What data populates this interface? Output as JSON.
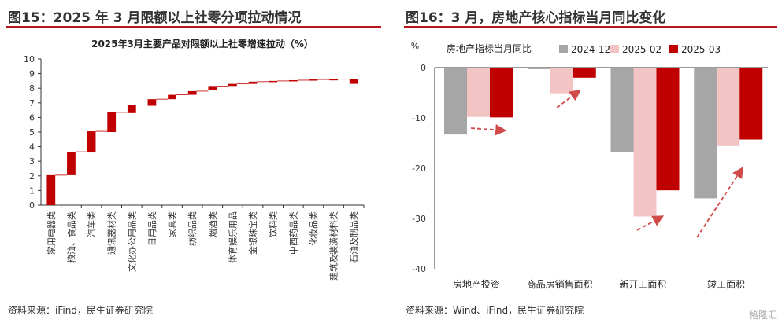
{
  "left_panel": {
    "figure_title": "图15：2025 年 3 月限额以上社零分项拉动情况",
    "source": "资料来源：iFind，民生证券研究院"
  },
  "right_panel": {
    "figure_title": "图16：3 月，房地产核心指标当月同比变化",
    "source": "资料来源：Wind、iFind，民生证券研究院",
    "watermark": "格隆汇"
  },
  "chart_data": [
    {
      "type": "bar",
      "subtype": "waterfall",
      "title": "2025年3月主要产品对限额以上社零增速拉动（%）",
      "categories": [
        "家用电器类",
        "粮油、食品类",
        "汽车类",
        "通讯器材类",
        "文化办公用品类",
        "日用品类",
        "家具类",
        "纺织品类",
        "烟酒类",
        "体育娱乐用品",
        "金银珠宝类",
        "饮料类",
        "中西药品类",
        "化妆品类",
        "建筑及装潢材料类",
        "石油及制品类"
      ],
      "start": [
        0,
        2.05,
        3.6,
        5.0,
        6.3,
        6.8,
        7.25,
        7.55,
        7.85,
        8.1,
        8.3,
        8.45,
        8.5,
        8.55,
        8.6,
        8.62
      ],
      "end": [
        2.05,
        3.65,
        5.05,
        6.35,
        6.85,
        7.25,
        7.55,
        7.8,
        8.1,
        8.3,
        8.45,
        8.5,
        8.55,
        8.6,
        8.62,
        8.3
      ],
      "ylim": [
        0,
        10
      ],
      "yticks": [
        0,
        1,
        2,
        3,
        4,
        5,
        6,
        7,
        8,
        9,
        10
      ],
      "color": "#c00000"
    },
    {
      "type": "bar",
      "title": "房地产指标当月同比",
      "ylabel": "%",
      "categories": [
        "房地产投资",
        "商品房销售面积",
        "新开工面积",
        "竣工面积"
      ],
      "series": [
        {
          "name": "2024-12",
          "color": "#a6a6a6",
          "values": [
            -13.3,
            -0.3,
            -16.8,
            -26.0
          ]
        },
        {
          "name": "2025-02",
          "color": "#f2c4c4",
          "values": [
            -9.8,
            -5.1,
            -29.6,
            -15.6
          ]
        },
        {
          "name": "2025-03",
          "color": "#c00000",
          "values": [
            -9.9,
            -2.0,
            -24.4,
            -14.3
          ]
        }
      ],
      "ylim": [
        -40,
        0
      ],
      "yticks": [
        0,
        -10,
        -20,
        -30,
        -40
      ],
      "legend_position": "top",
      "annotations": "dashed trend arrows"
    }
  ]
}
